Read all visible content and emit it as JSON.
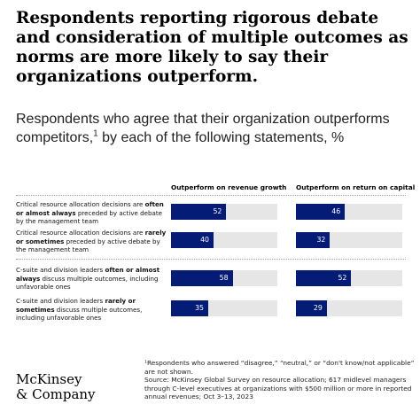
{
  "title": "Respondents reporting rigorous debate and consideration of multiple outcomes as norms are more likely to say their organizations outperform.",
  "subtitle": "Respondents who agree that their organization outperforms competitors,",
  "subtitle_sup": "1",
  "subtitle_end": " by each of the following statements, %",
  "chart_data": {
    "type": "bar",
    "orientation": "horizontal",
    "xlim": [
      0,
      100
    ],
    "columns": [
      "Outperform on revenue growth",
      "Outperform on return on capital"
    ],
    "colors": {
      "bar": "#051c76",
      "track": "#e6e6e6",
      "value_text": "#ffffff"
    },
    "rows": [
      {
        "label_parts": [
          {
            "t": "Critical resource allocation decisions are ",
            "b": false
          },
          {
            "t": "often or almost always",
            "b": true
          },
          {
            "t": " preceded by active debate by the management team",
            "b": false
          }
        ],
        "values": [
          52,
          46
        ]
      },
      {
        "label_parts": [
          {
            "t": "Critical resource allocation decisions are ",
            "b": false
          },
          {
            "t": "rarely or sometimes",
            "b": true
          },
          {
            "t": " preceded by active debate by the management team",
            "b": false
          }
        ],
        "values": [
          40,
          32
        ]
      },
      {
        "label_parts": [
          {
            "t": "C-suite and division leaders ",
            "b": false
          },
          {
            "t": "often or almost always",
            "b": true
          },
          {
            "t": " discuss multiple outcomes, including unfavorable ones",
            "b": false
          }
        ],
        "values": [
          58,
          52
        ]
      },
      {
        "label_parts": [
          {
            "t": "C-suite and division leaders ",
            "b": false
          },
          {
            "t": "rarely or sometimes",
            "b": true
          },
          {
            "t": " discuss multiple outcomes, including unfavorable ones",
            "b": false
          }
        ],
        "values": [
          35,
          29
        ]
      }
    ],
    "series": [
      {
        "name": "Outperform on revenue growth",
        "values": [
          52,
          40,
          58,
          35
        ]
      },
      {
        "name": "Outperform on return on capital",
        "values": [
          46,
          32,
          52,
          29
        ]
      }
    ]
  },
  "footnote": "¹Respondents who answered “disagree,” “neutral,” or “don't know/not applicable” are not shown.\nSource: McKinsey Global Survey on resource allocation; 617 midlevel managers through C-level executives at organizations with $500 million or more in reported annual revenues; Oct 3–13, 2023",
  "logo": "McKinsey\n& Company"
}
